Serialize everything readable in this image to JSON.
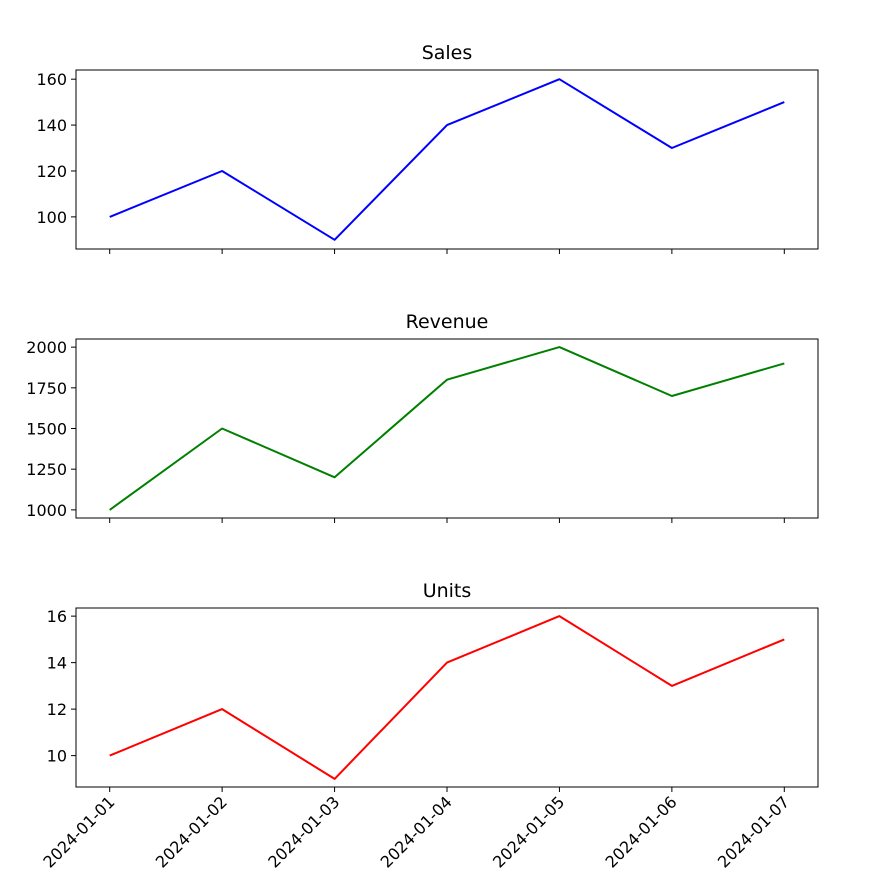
{
  "chart_data": [
    {
      "type": "line",
      "title": "Sales",
      "x": [
        "2024-01-01",
        "2024-01-02",
        "2024-01-03",
        "2024-01-04",
        "2024-01-05",
        "2024-01-06",
        "2024-01-07"
      ],
      "values": [
        100,
        120,
        90,
        140,
        160,
        130,
        150
      ],
      "ylim": [
        86,
        164
      ],
      "yticks": [
        100,
        120,
        140,
        160
      ],
      "ytick_labels": [
        "100",
        "120",
        "140",
        "160"
      ],
      "color": "#0000ff",
      "xlabel": "",
      "ylabel": "",
      "show_xtick_labels": false
    },
    {
      "type": "line",
      "title": "Revenue",
      "x": [
        "2024-01-01",
        "2024-01-02",
        "2024-01-03",
        "2024-01-04",
        "2024-01-05",
        "2024-01-06",
        "2024-01-07"
      ],
      "values": [
        1000,
        1500,
        1200,
        1800,
        2000,
        1700,
        1900
      ],
      "ylim": [
        950,
        2050
      ],
      "yticks": [
        1000,
        1250,
        1500,
        1750,
        2000
      ],
      "ytick_labels": [
        "1000",
        "1250",
        "1500",
        "1750",
        "2000"
      ],
      "color": "#008000",
      "xlabel": "",
      "ylabel": "",
      "show_xtick_labels": false
    },
    {
      "type": "line",
      "title": "Units",
      "x": [
        "2024-01-01",
        "2024-01-02",
        "2024-01-03",
        "2024-01-04",
        "2024-01-05",
        "2024-01-06",
        "2024-01-07"
      ],
      "values": [
        10,
        12,
        9,
        14,
        16,
        13,
        15
      ],
      "ylim": [
        8.65,
        16.35
      ],
      "yticks": [
        10,
        12,
        14,
        16
      ],
      "ytick_labels": [
        "10",
        "12",
        "14",
        "16"
      ],
      "color": "#ff0000",
      "xlabel": "",
      "ylabel": "",
      "show_xtick_labels": true
    }
  ]
}
